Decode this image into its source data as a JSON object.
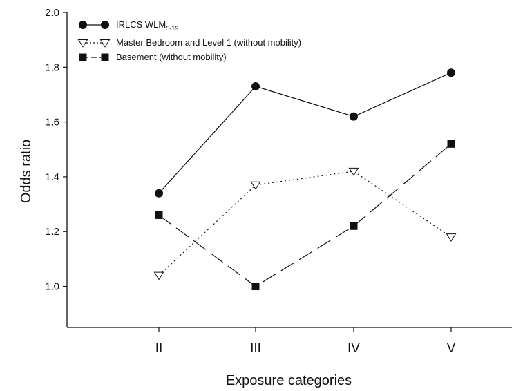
{
  "chart_data": {
    "type": "line",
    "title": "",
    "xlabel": "Exposure categories",
    "ylabel": "Odds ratio",
    "categories": [
      "II",
      "III",
      "IV",
      "V"
    ],
    "ylim": [
      0.85,
      2.0
    ],
    "yticks": [
      1.0,
      1.2,
      1.4,
      1.6,
      1.8,
      2.0
    ],
    "ytick_labels": [
      "1.0",
      "1.2",
      "1.4",
      "1.6",
      "1.8",
      "2.0"
    ],
    "grid": false,
    "legend_position": "top-left",
    "series": [
      {
        "name": "IRLCS WLM",
        "name_subscript": "5-19",
        "values": [
          1.34,
          1.73,
          1.62,
          1.78
        ],
        "line_style": "solid",
        "marker": "filled-circle",
        "color": "#111111"
      },
      {
        "name": "Master Bedroom and Level 1 (without mobility)",
        "values": [
          1.04,
          1.37,
          1.42,
          1.18
        ],
        "line_style": "dotted",
        "marker": "open-triangle-down",
        "color": "#111111"
      },
      {
        "name": "Basement (without mobility)",
        "values": [
          1.26,
          1.0,
          1.22,
          1.52
        ],
        "line_style": "dashed",
        "marker": "filled-square",
        "color": "#111111"
      }
    ]
  }
}
